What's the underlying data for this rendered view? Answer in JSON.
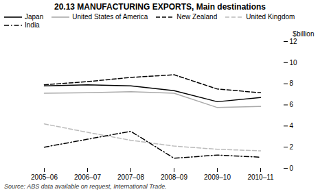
{
  "chart_data": {
    "type": "line",
    "title": "20.13   MANUFACTURING EXPORTS, Main destinations",
    "ylabel": "$billion",
    "source": "Source: ABS data available on request, International Trade.",
    "categories": [
      "2005–06",
      "2006–07",
      "2007–08",
      "2008–09",
      "2009–10",
      "2010–11"
    ],
    "series": [
      {
        "name": "Japan",
        "color": "#000000",
        "line_style": "solid",
        "values": [
          7.8,
          7.9,
          7.8,
          7.35,
          6.3,
          6.7
        ]
      },
      {
        "name": "United States of America",
        "color": "#aaaaaa",
        "line_style": "solid",
        "values": [
          7.1,
          7.15,
          7.25,
          7.1,
          5.75,
          5.85
        ]
      },
      {
        "name": "New Zealand",
        "color": "#000000",
        "line_style": "dashed",
        "values": [
          7.9,
          8.2,
          8.6,
          8.85,
          7.5,
          7.15
        ]
      },
      {
        "name": "United Kingdom",
        "color": "#bbbbbb",
        "line_style": "dashed",
        "values": [
          4.2,
          3.4,
          2.65,
          2.1,
          1.8,
          1.65
        ]
      },
      {
        "name": "India",
        "color": "#000000",
        "line_style": "dashdot",
        "values": [
          2.0,
          2.75,
          3.5,
          0.95,
          1.25,
          1.05
        ]
      }
    ],
    "ylim": [
      0,
      12
    ],
    "yticks": [
      0,
      2,
      4,
      6,
      8,
      10,
      12
    ],
    "grid": false,
    "legend": "upper left"
  }
}
